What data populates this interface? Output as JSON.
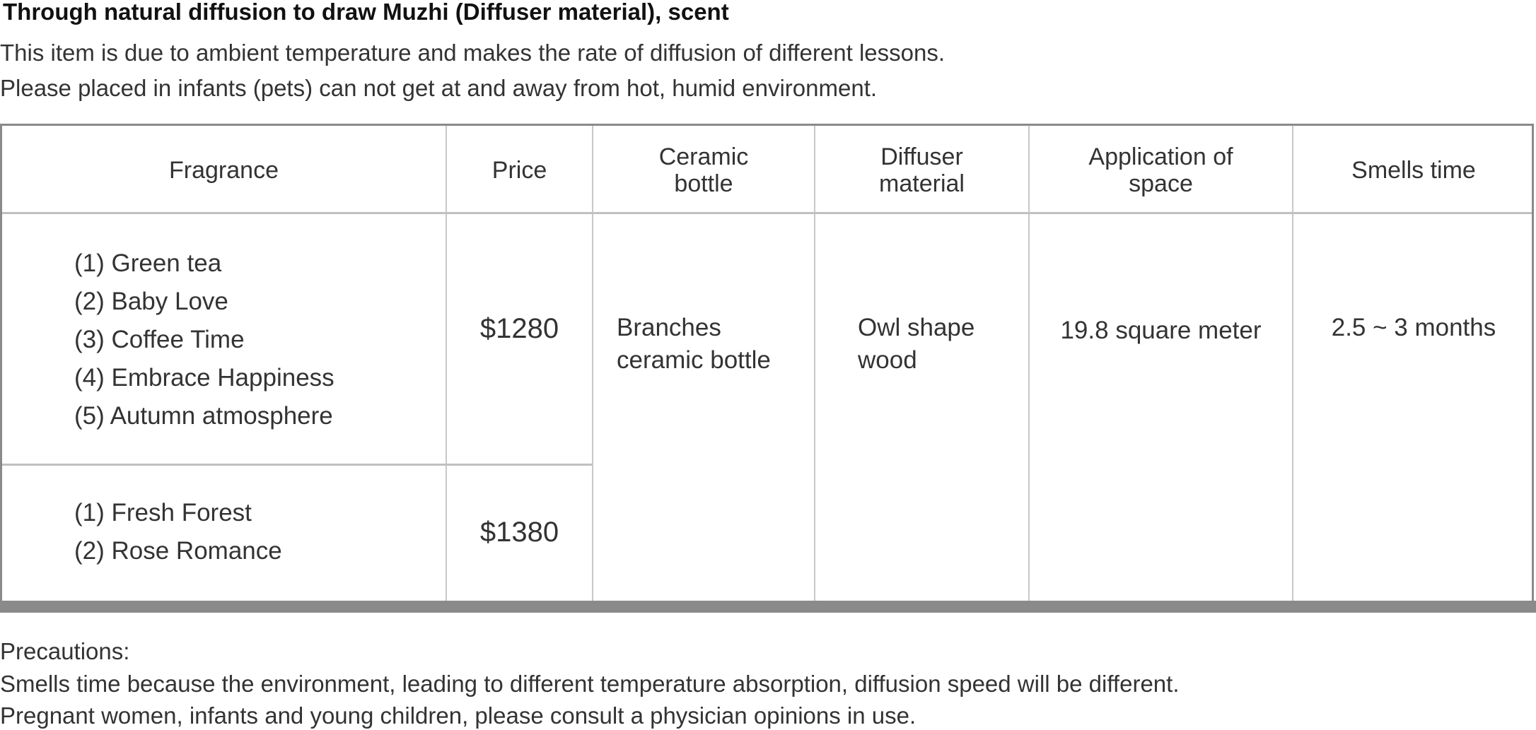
{
  "title": "Through natural diffusion to draw Muzhi (Diffuser material), scent",
  "intro": [
    "This item is due to ambient temperature and makes the rate of diffusion of different lessons.",
    "Please placed in infants (pets) can not get at and away from hot, humid environment."
  ],
  "table": {
    "headers": [
      "Fragrance",
      "Price",
      "Ceramic bottle",
      "Diffuser material",
      "Application of space",
      "Smells time"
    ],
    "groups": [
      {
        "fragrances": [
          "(1) Green tea",
          "(2) Baby Love",
          "(3) Coffee Time",
          "(4) Embrace Happiness",
          "(5) Autumn atmosphere"
        ],
        "price": "$1280"
      },
      {
        "fragrances": [
          "(1) Fresh Forest",
          "(2) Rose Romance"
        ],
        "price": "$1380"
      }
    ],
    "ceramic_bottle": "Branches ceramic bottle",
    "diffuser_material": "Owl shape wood",
    "application_of_space": "19.8 square meter",
    "smells_time": "2.5 ~ 3 months"
  },
  "precautions": {
    "heading": "Precautions:",
    "lines": [
      "Smells time because the environment, leading to different temperature absorption, diffusion speed will be different.",
      "Pregnant women, infants and young children, please consult a physician opinions in use."
    ]
  }
}
